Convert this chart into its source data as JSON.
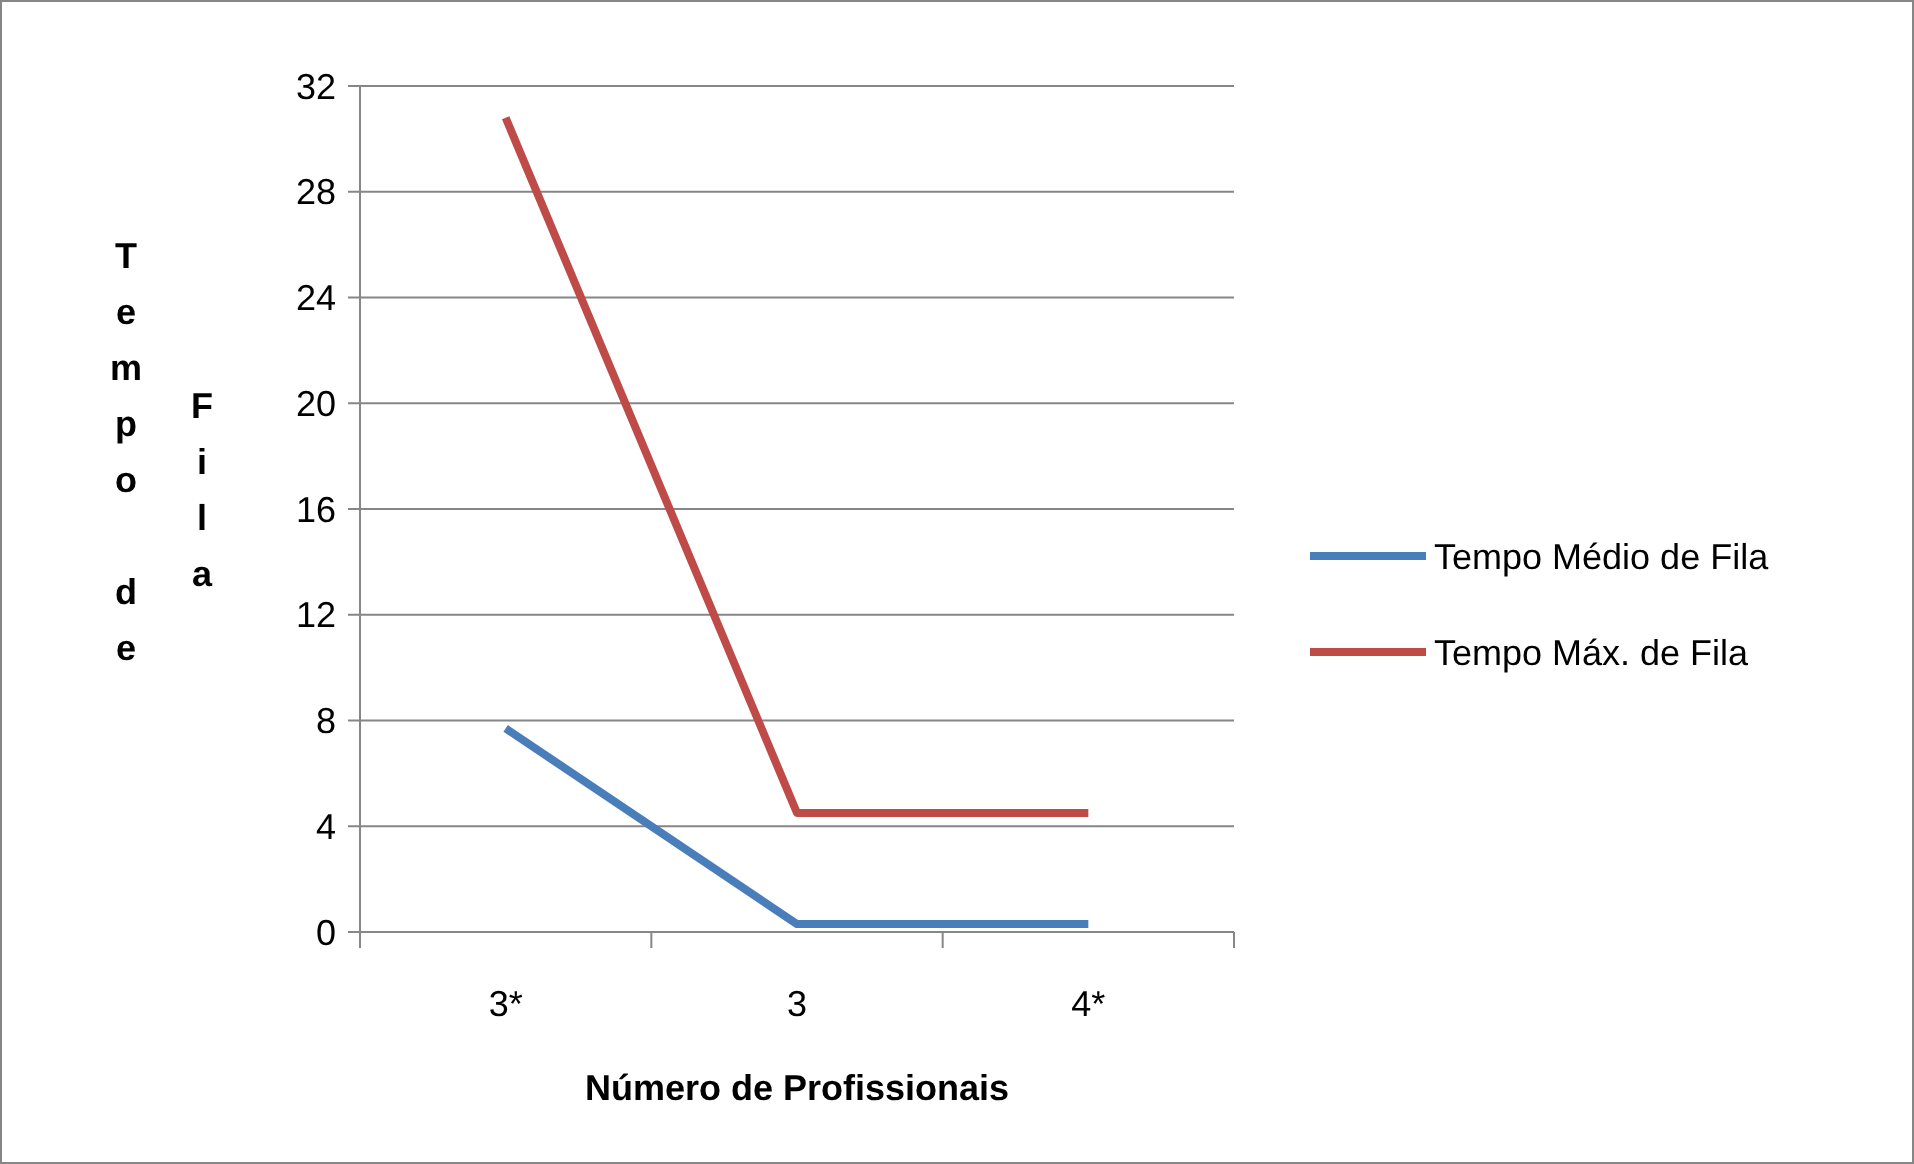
{
  "chart_data": {
    "type": "line",
    "xlabel": "Número de Profissionais",
    "ylabel": "Tempo de Fila",
    "categories": [
      "3*",
      "3",
      "4*"
    ],
    "series": [
      {
        "name": "Tempo Médio de Fila",
        "color": "#4a7ebb",
        "values": [
          7.7,
          0.3,
          0.3
        ]
      },
      {
        "name": "Tempo Máx. de Fila",
        "color": "#be4b48",
        "values": [
          30.8,
          4.5,
          4.5
        ]
      }
    ],
    "ylim": [
      0,
      32
    ],
    "yticks": [
      0,
      4,
      8,
      12,
      16,
      20,
      24,
      28,
      32
    ],
    "grid": "y",
    "legend": "right",
    "marker": "none",
    "line_style": "solid"
  }
}
